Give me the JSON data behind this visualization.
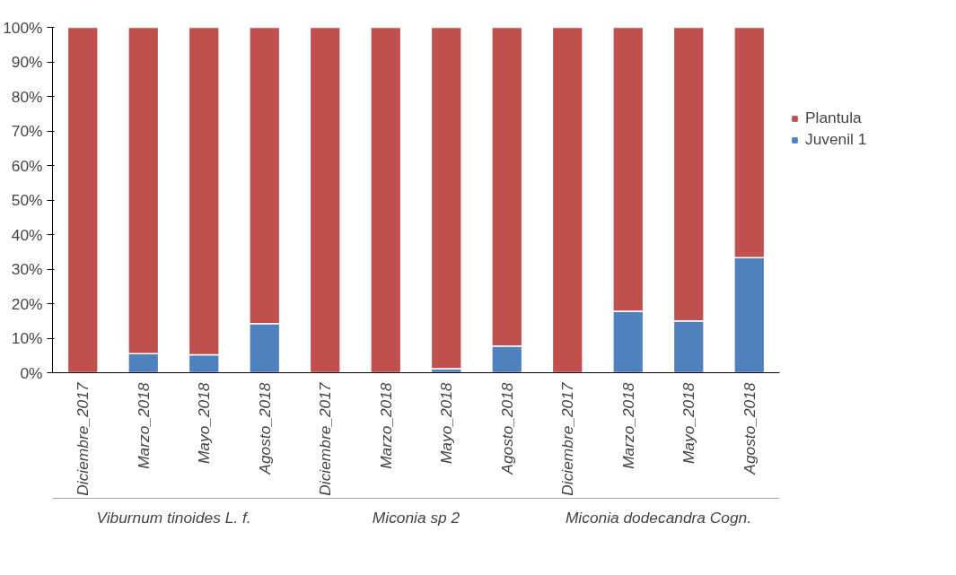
{
  "chart_data": {
    "type": "bar",
    "stacked": true,
    "categories": [
      "Diciembre_2017",
      "Marzo_2018",
      "Mayo_2018",
      "Agosto_2018",
      "Diciembre_2017",
      "Marzo_2018",
      "Mayo_2018",
      "Agosto_2018",
      "Diciembre_2017",
      "Marzo_2018",
      "Mayo_2018",
      "Agosto_2018"
    ],
    "series": [
      {
        "name": "Juvenil 1",
        "color": "#4f81bd",
        "values": [
          0,
          5.5,
          5.2,
          14.2,
          0,
          0,
          1.2,
          7.7,
          0,
          17.8,
          15,
          33.3
        ]
      },
      {
        "name": "Plantula",
        "color": "#c0504d",
        "values": [
          100,
          94.5,
          94.8,
          85.8,
          100,
          100,
          98.8,
          92.3,
          100,
          82.2,
          85,
          66.7
        ]
      }
    ],
    "ylim": [
      0,
      100
    ],
    "yticks": [
      {
        "value": 0,
        "label": "0%"
      },
      {
        "value": 10,
        "label": "10%"
      },
      {
        "value": 20,
        "label": "20%"
      },
      {
        "value": 30,
        "label": "30%"
      },
      {
        "value": 40,
        "label": "40%"
      },
      {
        "value": 50,
        "label": "50%"
      },
      {
        "value": 60,
        "label": "60%"
      },
      {
        "value": 70,
        "label": "70%"
      },
      {
        "value": 80,
        "label": "80%"
      },
      {
        "value": 90,
        "label": "90%"
      },
      {
        "value": 100,
        "label": "100%"
      }
    ],
    "annotations": [
      "Viburnum tinoides L. f.",
      "Miconia sp 2",
      "Miconia dodecandra Cogn."
    ],
    "grid": false,
    "legend": "right"
  }
}
